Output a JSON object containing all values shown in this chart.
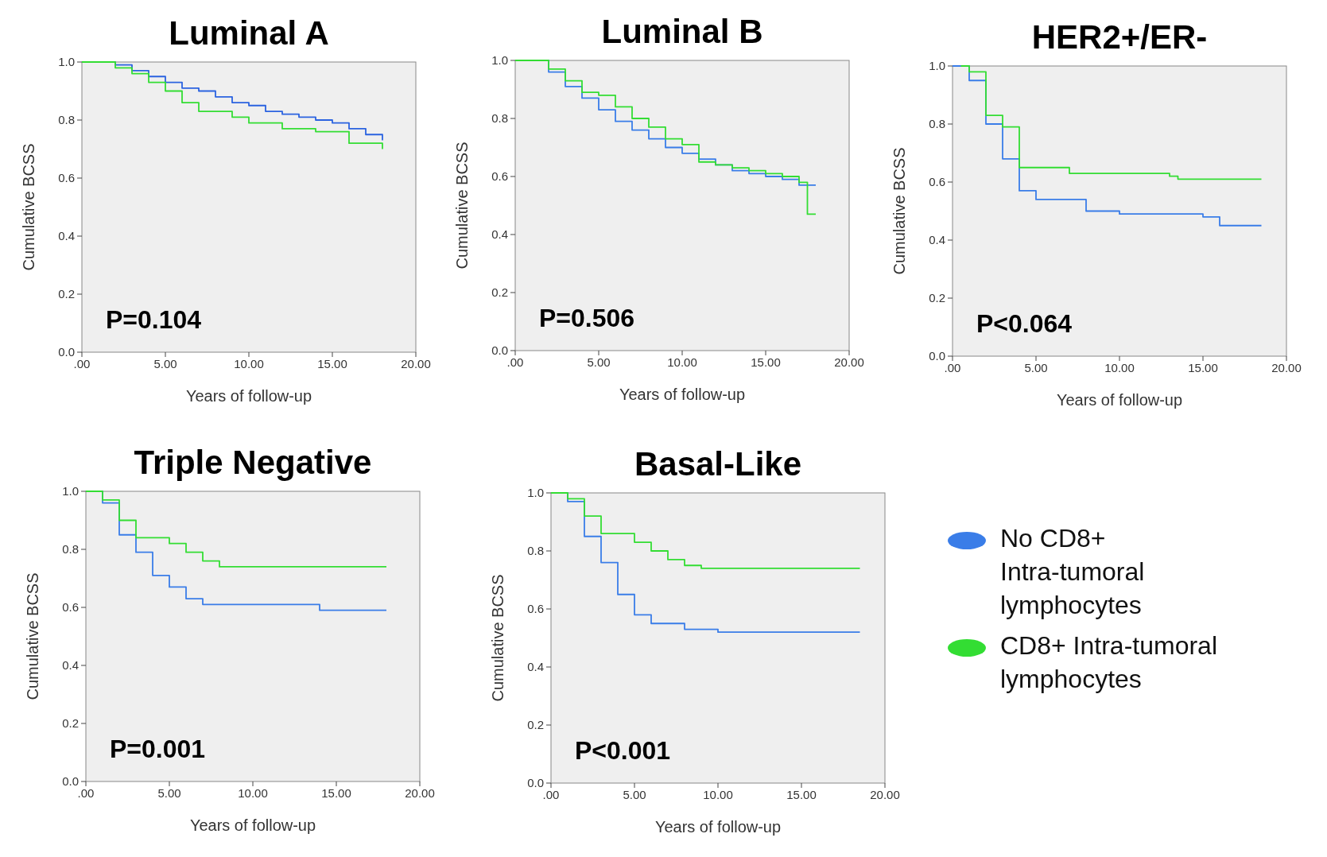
{
  "chart_data": [
    {
      "type": "step",
      "title": "Luminal A",
      "xlabel": "Years of follow-up",
      "ylabel": "Cumulative BCSS",
      "xlim": [
        0,
        20
      ],
      "ylim": [
        0,
        1
      ],
      "xticks": [
        {
          "value": 0,
          "label": ".00"
        },
        {
          "value": 5,
          "label": "5.00"
        },
        {
          "value": 10,
          "label": "10.00"
        },
        {
          "value": 15,
          "label": "15.00"
        },
        {
          "value": 20,
          "label": "20.00"
        }
      ],
      "yticks": [
        {
          "value": 0,
          "label": "0.0"
        },
        {
          "value": 0.2,
          "label": "0.2"
        },
        {
          "value": 0.4,
          "label": "0.4"
        },
        {
          "value": 0.6,
          "label": "0.6"
        },
        {
          "value": 0.8,
          "label": "0.8"
        },
        {
          "value": 1,
          "label": "1.0"
        }
      ],
      "grid": false,
      "marker": "none",
      "annotations": [
        "P=0.104"
      ],
      "series": [
        {
          "color": "#2b63e0",
          "x": [
            0,
            2,
            3,
            4,
            5,
            6,
            7,
            8,
            9,
            10,
            11,
            12,
            13,
            14,
            15,
            16,
            17,
            18
          ],
          "values": [
            1,
            0.99,
            0.97,
            0.95,
            0.93,
            0.91,
            0.9,
            0.88,
            0.86,
            0.85,
            0.83,
            0.82,
            0.81,
            0.8,
            0.79,
            0.77,
            0.75,
            0.73
          ]
        },
        {
          "color": "#33dd33",
          "x": [
            0,
            1,
            2,
            3,
            4,
            5,
            6,
            7,
            8,
            9,
            10,
            12,
            14,
            15,
            16,
            18
          ],
          "values": [
            1,
            1,
            0.98,
            0.96,
            0.93,
            0.9,
            0.86,
            0.83,
            0.83,
            0.81,
            0.79,
            0.77,
            0.76,
            0.76,
            0.72,
            0.7
          ]
        }
      ]
    },
    {
      "type": "step",
      "title": "Luminal B",
      "xlabel": "Years of follow-up",
      "ylabel": "Cumulative BCSS",
      "xlim": [
        0,
        20
      ],
      "ylim": [
        0,
        1
      ],
      "xticks": [
        {
          "value": 0,
          "label": ".00"
        },
        {
          "value": 5,
          "label": "5.00"
        },
        {
          "value": 10,
          "label": "10.00"
        },
        {
          "value": 15,
          "label": "15.00"
        },
        {
          "value": 20,
          "label": "20.00"
        }
      ],
      "yticks": [
        {
          "value": 0,
          "label": "0.0"
        },
        {
          "value": 0.2,
          "label": "0.2"
        },
        {
          "value": 0.4,
          "label": "0.4"
        },
        {
          "value": 0.6,
          "label": "0.6"
        },
        {
          "value": 0.8,
          "label": "0.8"
        },
        {
          "value": 1,
          "label": "1.0"
        }
      ],
      "grid": false,
      "marker": "none",
      "annotations": [
        "P=0.506"
      ],
      "series": [
        {
          "color": "#3a7de8",
          "x": [
            0,
            2,
            3,
            4,
            5,
            6,
            7,
            8,
            9,
            10,
            11,
            12,
            13,
            14,
            15,
            16,
            17,
            18
          ],
          "values": [
            1,
            0.96,
            0.91,
            0.87,
            0.83,
            0.79,
            0.76,
            0.73,
            0.7,
            0.68,
            0.66,
            0.64,
            0.62,
            0.61,
            0.6,
            0.59,
            0.57,
            0.57
          ]
        },
        {
          "color": "#33dd33",
          "x": [
            0,
            1,
            2,
            3,
            4,
            5,
            6,
            7,
            8,
            9,
            10,
            11,
            12,
            13,
            14,
            15,
            16,
            17,
            17.5,
            18
          ],
          "values": [
            1,
            1,
            0.97,
            0.93,
            0.89,
            0.88,
            0.84,
            0.8,
            0.77,
            0.73,
            0.71,
            0.65,
            0.64,
            0.63,
            0.62,
            0.61,
            0.6,
            0.58,
            0.47,
            0.47
          ]
        }
      ]
    },
    {
      "type": "step",
      "title": "HER2+/ER-",
      "xlabel": "Years of follow-up",
      "ylabel": "Cumulative BCSS",
      "xlim": [
        0,
        20
      ],
      "ylim": [
        0,
        1
      ],
      "xticks": [
        {
          "value": 0,
          "label": ".00"
        },
        {
          "value": 5,
          "label": "5.00"
        },
        {
          "value": 10,
          "label": "10.00"
        },
        {
          "value": 15,
          "label": "15.00"
        },
        {
          "value": 20,
          "label": "20.00"
        }
      ],
      "yticks": [
        {
          "value": 0,
          "label": "0.0"
        },
        {
          "value": 0.2,
          "label": "0.2"
        },
        {
          "value": 0.4,
          "label": "0.4"
        },
        {
          "value": 0.6,
          "label": "0.6"
        },
        {
          "value": 0.8,
          "label": "0.8"
        },
        {
          "value": 1,
          "label": "1.0"
        }
      ],
      "grid": false,
      "marker": "none",
      "annotations": [
        "P<0.064"
      ],
      "series": [
        {
          "color": "#3a7de8",
          "x": [
            0,
            1,
            2,
            3,
            4,
            5,
            8,
            10,
            15,
            16,
            18.5
          ],
          "values": [
            1,
            0.95,
            0.8,
            0.68,
            0.57,
            0.54,
            0.5,
            0.49,
            0.48,
            0.45,
            0.45
          ]
        },
        {
          "color": "#33dd33",
          "x": [
            0.5,
            1,
            2,
            3,
            4,
            6,
            7,
            10,
            13,
            13.5,
            18.5
          ],
          "values": [
            1,
            0.98,
            0.83,
            0.79,
            0.65,
            0.65,
            0.63,
            0.63,
            0.62,
            0.61,
            0.61
          ]
        }
      ]
    },
    {
      "type": "step",
      "title": "Triple Negative",
      "xlabel": "Years of follow-up",
      "ylabel": "Cumulative BCSS",
      "xlim": [
        0,
        20
      ],
      "ylim": [
        0,
        1
      ],
      "xticks": [
        {
          "value": 0,
          "label": ".00"
        },
        {
          "value": 5,
          "label": "5.00"
        },
        {
          "value": 10,
          "label": "10.00"
        },
        {
          "value": 15,
          "label": "15.00"
        },
        {
          "value": 20,
          "label": "20.00"
        }
      ],
      "yticks": [
        {
          "value": 0,
          "label": "0.0"
        },
        {
          "value": 0.2,
          "label": "0.2"
        },
        {
          "value": 0.4,
          "label": "0.4"
        },
        {
          "value": 0.6,
          "label": "0.6"
        },
        {
          "value": 0.8,
          "label": "0.8"
        },
        {
          "value": 1,
          "label": "1.0"
        }
      ],
      "grid": false,
      "marker": "none",
      "annotations": [
        "P=0.001"
      ],
      "series": [
        {
          "color": "#3a7de8",
          "x": [
            0,
            1,
            2,
            3,
            4,
            5,
            6,
            7,
            12,
            14,
            18
          ],
          "values": [
            1,
            0.96,
            0.85,
            0.79,
            0.71,
            0.67,
            0.63,
            0.61,
            0.61,
            0.59,
            0.59
          ]
        },
        {
          "color": "#33dd33",
          "x": [
            0,
            1,
            2,
            3,
            5,
            6,
            7,
            8,
            18
          ],
          "values": [
            1,
            0.97,
            0.9,
            0.84,
            0.82,
            0.79,
            0.76,
            0.74,
            0.74
          ]
        }
      ]
    },
    {
      "type": "step",
      "title": "Basal-Like",
      "xlabel": "Years of follow-up",
      "ylabel": "Cumulative BCSS",
      "xlim": [
        0,
        20
      ],
      "ylim": [
        0,
        1
      ],
      "xticks": [
        {
          "value": 0,
          "label": ".00"
        },
        {
          "value": 5,
          "label": "5.00"
        },
        {
          "value": 10,
          "label": "10.00"
        },
        {
          "value": 15,
          "label": "15.00"
        },
        {
          "value": 20,
          "label": "20.00"
        }
      ],
      "yticks": [
        {
          "value": 0,
          "label": "0.0"
        },
        {
          "value": 0.2,
          "label": "0.2"
        },
        {
          "value": 0.4,
          "label": "0.4"
        },
        {
          "value": 0.6,
          "label": "0.6"
        },
        {
          "value": 0.8,
          "label": "0.8"
        },
        {
          "value": 1,
          "label": "1.0"
        }
      ],
      "grid": false,
      "marker": "none",
      "legend": "right",
      "annotations": [
        "P<0.001"
      ],
      "series": [
        {
          "name": "No CD8+  Intra-tumoral lymphocytes",
          "color": "#3a7de8",
          "x": [
            0,
            1,
            2,
            3,
            4,
            5,
            6,
            8,
            10,
            18.5
          ],
          "values": [
            1,
            0.97,
            0.85,
            0.76,
            0.65,
            0.58,
            0.55,
            0.53,
            0.52,
            0.52
          ]
        },
        {
          "name": "CD8+ Intra-tumoral lymphocytes",
          "color": "#33dd33",
          "x": [
            0,
            1,
            2,
            3,
            5,
            6,
            7,
            8,
            9,
            18.5
          ],
          "values": [
            1,
            0.98,
            0.92,
            0.86,
            0.83,
            0.8,
            0.77,
            0.75,
            0.74,
            0.74
          ]
        }
      ]
    }
  ]
}
